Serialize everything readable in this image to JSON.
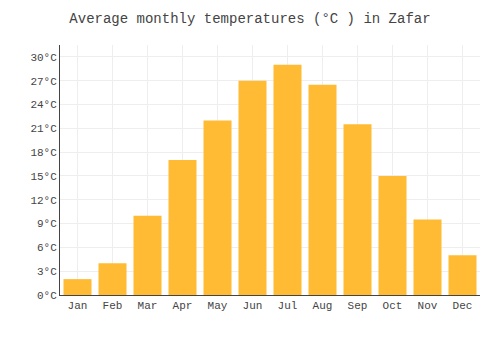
{
  "chart_data": {
    "type": "bar",
    "title": "Average monthly temperatures (°C ) in Zafar",
    "categories": [
      "Jan",
      "Feb",
      "Mar",
      "Apr",
      "May",
      "Jun",
      "Jul",
      "Aug",
      "Sep",
      "Oct",
      "Nov",
      "Dec"
    ],
    "values": [
      2,
      4,
      10,
      17,
      22,
      27,
      29,
      26.5,
      21.5,
      15,
      9.5,
      5
    ],
    "color": "#FFBB33",
    "ylim": [
      0,
      31.5
    ],
    "yticks": [
      {
        "value": 0,
        "label": "0°C"
      },
      {
        "value": 3,
        "label": "3°C"
      },
      {
        "value": 6,
        "label": "6°C"
      },
      {
        "value": 9,
        "label": "9°C"
      },
      {
        "value": 12,
        "label": "12°C"
      },
      {
        "value": 15,
        "label": "15°C"
      },
      {
        "value": 18,
        "label": "18°C"
      },
      {
        "value": 21,
        "label": "21°C"
      },
      {
        "value": 24,
        "label": "24°C"
      },
      {
        "value": 27,
        "label": "27°C"
      },
      {
        "value": 30,
        "label": "30°C"
      }
    ],
    "grid": true
  }
}
